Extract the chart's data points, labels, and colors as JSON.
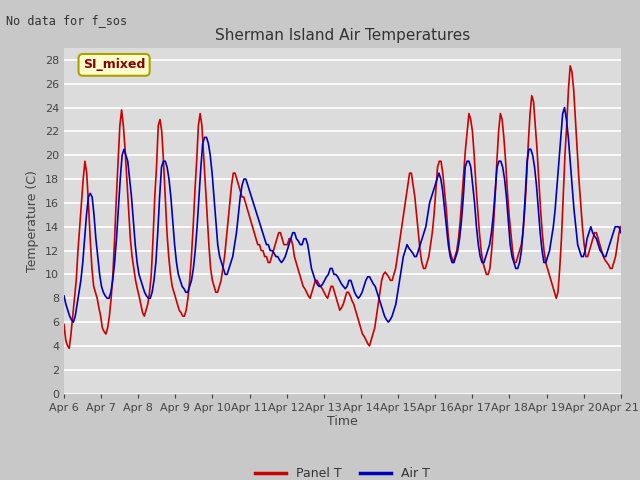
{
  "title": "Sherman Island Air Temperatures",
  "xlabel": "Time",
  "ylabel": "Temperature (C)",
  "note": "No data for f_sos",
  "label_text": "SI_mixed",
  "ylim": [
    0,
    29
  ],
  "yticks": [
    0,
    2,
    4,
    6,
    8,
    10,
    12,
    14,
    16,
    18,
    20,
    22,
    24,
    26,
    28
  ],
  "date_labels": [
    "Apr 6",
    "Apr 7",
    "Apr 8",
    "Apr 9",
    "Apr 10",
    "Apr 11",
    "Apr 12",
    "Apr 13",
    "Apr 14",
    "Apr 15",
    "Apr 16",
    "Apr 17",
    "Apr 18",
    "Apr 19",
    "Apr 20",
    "Apr 21"
  ],
  "panel_color": "#cc0000",
  "air_color": "#0000bb",
  "fig_bg": "#c8c8c8",
  "plot_bg": "#dcdcdc",
  "grid_color": "#ffffff",
  "legend_panel": "Panel T",
  "legend_air": "Air T",
  "panel_t": [
    5.8,
    4.5,
    4.0,
    3.8,
    5.0,
    6.5,
    8.0,
    9.5,
    12.0,
    14.0,
    16.0,
    18.0,
    19.5,
    18.5,
    16.0,
    13.0,
    10.5,
    9.0,
    8.5,
    8.0,
    7.2,
    6.5,
    5.5,
    5.2,
    5.0,
    5.5,
    6.5,
    8.0,
    10.0,
    13.0,
    16.5,
    19.5,
    22.5,
    23.8,
    22.5,
    20.5,
    18.0,
    15.5,
    13.0,
    11.5,
    10.5,
    9.5,
    8.8,
    8.2,
    7.5,
    6.8,
    6.5,
    7.0,
    7.5,
    8.5,
    10.0,
    13.0,
    16.5,
    19.0,
    22.5,
    23.0,
    22.0,
    19.5,
    16.5,
    13.5,
    11.5,
    10.0,
    9.0,
    8.5,
    8.0,
    7.5,
    7.0,
    6.8,
    6.5,
    6.5,
    7.0,
    8.0,
    9.5,
    11.5,
    14.0,
    17.0,
    19.5,
    22.5,
    23.5,
    22.5,
    20.0,
    17.5,
    15.0,
    12.5,
    10.5,
    9.5,
    9.0,
    8.5,
    8.5,
    9.0,
    9.5,
    10.5,
    11.5,
    13.0,
    14.5,
    16.0,
    17.5,
    18.5,
    18.5,
    18.0,
    17.5,
    17.0,
    16.5,
    16.5,
    16.0,
    15.5,
    15.0,
    14.5,
    14.0,
    13.5,
    13.0,
    12.5,
    12.5,
    12.0,
    12.0,
    11.5,
    11.5,
    11.0,
    11.0,
    11.5,
    12.0,
    12.5,
    13.0,
    13.5,
    13.5,
    13.0,
    12.5,
    12.5,
    12.5,
    13.0,
    13.0,
    12.5,
    11.5,
    11.0,
    10.5,
    10.0,
    9.5,
    9.0,
    8.8,
    8.5,
    8.2,
    8.0,
    8.5,
    9.0,
    9.5,
    9.5,
    9.2,
    9.0,
    8.8,
    8.5,
    8.2,
    8.0,
    8.5,
    9.0,
    9.0,
    8.5,
    8.0,
    7.5,
    7.0,
    7.2,
    7.5,
    8.0,
    8.5,
    8.5,
    8.2,
    7.8,
    7.5,
    7.0,
    6.5,
    6.0,
    5.5,
    5.0,
    4.8,
    4.5,
    4.2,
    4.0,
    4.5,
    5.0,
    5.5,
    6.5,
    7.5,
    8.5,
    9.5,
    10.0,
    10.2,
    10.0,
    9.8,
    9.5,
    9.5,
    10.0,
    10.5,
    11.5,
    12.5,
    13.5,
    14.5,
    15.5,
    16.5,
    17.5,
    18.5,
    18.5,
    17.5,
    16.5,
    15.0,
    13.5,
    12.0,
    11.0,
    10.5,
    10.5,
    11.0,
    11.5,
    12.5,
    13.5,
    15.0,
    17.0,
    19.0,
    19.5,
    19.5,
    18.5,
    17.0,
    15.5,
    13.5,
    12.0,
    11.5,
    11.0,
    11.5,
    12.0,
    13.0,
    14.5,
    16.5,
    18.5,
    20.5,
    22.0,
    23.5,
    23.0,
    22.0,
    20.0,
    17.5,
    15.5,
    13.5,
    12.0,
    11.0,
    10.5,
    10.0,
    10.0,
    10.5,
    12.0,
    14.0,
    16.5,
    19.5,
    22.0,
    23.5,
    23.0,
    21.5,
    19.5,
    17.0,
    15.0,
    13.5,
    12.0,
    11.0,
    11.0,
    11.5,
    12.0,
    12.5,
    13.5,
    15.5,
    18.0,
    21.0,
    23.5,
    25.0,
    24.5,
    22.5,
    20.5,
    18.0,
    15.5,
    13.5,
    12.0,
    11.0,
    10.5,
    10.0,
    9.5,
    9.0,
    8.5,
    8.0,
    8.5,
    10.5,
    13.0,
    16.5,
    20.0,
    22.5,
    25.5,
    27.5,
    27.0,
    25.5,
    23.0,
    20.5,
    18.0,
    16.0,
    14.0,
    12.5,
    11.5,
    11.5,
    12.0,
    12.5,
    13.0,
    13.5,
    13.5,
    13.0,
    12.5,
    12.0,
    11.5,
    11.2,
    11.0,
    10.8,
    10.5,
    10.5,
    11.0,
    11.5,
    12.5,
    13.5,
    14.0
  ],
  "air_t": [
    8.2,
    7.5,
    7.0,
    6.5,
    6.2,
    6.0,
    6.5,
    7.5,
    8.5,
    9.5,
    11.0,
    13.0,
    15.0,
    16.5,
    16.8,
    16.5,
    15.0,
    13.0,
    11.5,
    10.0,
    9.0,
    8.5,
    8.2,
    8.0,
    8.0,
    8.5,
    9.5,
    11.0,
    13.0,
    15.5,
    18.0,
    20.0,
    20.5,
    20.0,
    19.5,
    18.0,
    16.5,
    14.5,
    12.5,
    11.0,
    10.0,
    9.5,
    9.0,
    8.5,
    8.2,
    8.0,
    8.0,
    8.5,
    9.5,
    11.0,
    13.5,
    16.5,
    19.0,
    19.5,
    19.5,
    19.0,
    18.0,
    16.5,
    14.5,
    12.5,
    11.0,
    10.0,
    9.5,
    9.0,
    8.8,
    8.5,
    8.5,
    9.0,
    9.5,
    10.5,
    12.0,
    14.0,
    16.5,
    19.0,
    21.0,
    21.5,
    21.5,
    21.0,
    20.0,
    18.5,
    16.5,
    14.5,
    12.5,
    11.5,
    11.0,
    10.5,
    10.0,
    10.0,
    10.5,
    11.0,
    11.5,
    12.5,
    13.5,
    15.0,
    16.5,
    17.5,
    18.0,
    18.0,
    17.5,
    17.0,
    16.5,
    16.0,
    15.5,
    15.0,
    14.5,
    14.0,
    13.5,
    13.0,
    12.5,
    12.5,
    12.0,
    12.0,
    11.8,
    11.5,
    11.5,
    11.2,
    11.0,
    11.2,
    11.5,
    12.0,
    12.5,
    13.0,
    13.5,
    13.5,
    13.0,
    12.8,
    12.5,
    12.5,
    13.0,
    13.0,
    12.5,
    11.5,
    10.5,
    10.0,
    9.5,
    9.2,
    9.0,
    9.0,
    9.2,
    9.5,
    9.8,
    10.0,
    10.5,
    10.5,
    10.0,
    10.0,
    9.8,
    9.5,
    9.2,
    9.0,
    8.8,
    9.0,
    9.5,
    9.5,
    9.0,
    8.5,
    8.2,
    8.0,
    8.2,
    8.5,
    9.0,
    9.5,
    9.8,
    9.8,
    9.5,
    9.2,
    9.0,
    8.5,
    8.0,
    7.5,
    7.0,
    6.5,
    6.2,
    6.0,
    6.2,
    6.5,
    7.0,
    7.5,
    8.5,
    9.5,
    10.5,
    11.5,
    12.0,
    12.5,
    12.2,
    12.0,
    11.8,
    11.5,
    11.5,
    12.0,
    12.5,
    13.0,
    13.5,
    14.0,
    15.0,
    16.0,
    16.5,
    17.0,
    17.5,
    18.0,
    18.5,
    18.0,
    17.0,
    15.5,
    14.0,
    12.5,
    11.5,
    11.0,
    11.0,
    11.5,
    12.0,
    13.0,
    14.5,
    16.5,
    19.0,
    19.5,
    19.5,
    19.0,
    17.5,
    16.0,
    14.0,
    12.5,
    11.5,
    11.0,
    11.0,
    11.5,
    12.0,
    12.5,
    13.5,
    15.0,
    17.0,
    19.0,
    19.5,
    19.5,
    19.0,
    18.0,
    16.5,
    14.5,
    12.5,
    11.5,
    11.0,
    10.5,
    10.5,
    11.0,
    12.0,
    14.0,
    16.5,
    19.5,
    20.5,
    20.5,
    20.0,
    19.0,
    17.5,
    15.5,
    13.5,
    12.0,
    11.0,
    11.0,
    11.5,
    12.0,
    13.0,
    14.0,
    15.5,
    17.5,
    19.5,
    21.5,
    23.5,
    24.0,
    23.0,
    21.5,
    19.5,
    17.5,
    15.5,
    14.0,
    12.5,
    12.0,
    11.5,
    11.5,
    12.0,
    13.0,
    13.5,
    14.0,
    13.5,
    13.2,
    13.0,
    12.5,
    12.0,
    11.8,
    11.5,
    11.5,
    12.0,
    12.5,
    13.0,
    13.5,
    14.0,
    14.0,
    14.0,
    13.5
  ]
}
